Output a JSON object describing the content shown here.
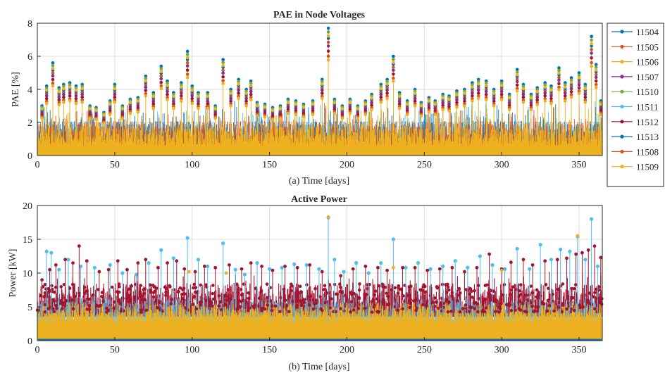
{
  "chart_data": [
    {
      "type": "line",
      "title": "PAE in Node Voltages",
      "xlabel": "(a) Time [days]",
      "ylabel": "PAE [%]",
      "xlim": [
        0,
        365
      ],
      "ylim": [
        0,
        8
      ],
      "xticks": [
        0,
        50,
        100,
        150,
        200,
        250,
        300,
        350
      ],
      "yticks": [
        0,
        2,
        4,
        6,
        8
      ],
      "grid": true,
      "legend_position": "outside-right",
      "series": [
        {
          "name": "11504",
          "color": "#0072BD"
        },
        {
          "name": "11505",
          "color": "#D95319"
        },
        {
          "name": "11506",
          "color": "#EDB120"
        },
        {
          "name": "11507",
          "color": "#7E2F8E"
        },
        {
          "name": "11510",
          "color": "#77AC30"
        },
        {
          "name": "11511",
          "color": "#4DBEEE"
        },
        {
          "name": "11512",
          "color": "#A2142F"
        },
        {
          "name": "11513",
          "color": "#0072BD"
        },
        {
          "name": "11508",
          "color": "#D95319"
        },
        {
          "name": "11509",
          "color": "#EDB120"
        }
      ],
      "baseline_band": [
        0,
        1.5
      ],
      "peaks": [
        [
          3,
          3.0
        ],
        [
          6,
          4.2
        ],
        [
          10,
          5.6
        ],
        [
          14,
          4.1
        ],
        [
          17,
          4.3
        ],
        [
          21,
          4.4
        ],
        [
          25,
          4.2
        ],
        [
          29,
          4.3
        ],
        [
          34,
          3.0
        ],
        [
          38,
          2.9
        ],
        [
          43,
          2.6
        ],
        [
          47,
          3.3
        ],
        [
          50,
          4.3
        ],
        [
          55,
          3.0
        ],
        [
          60,
          3.4
        ],
        [
          65,
          3.5
        ],
        [
          70,
          4.8
        ],
        [
          75,
          3.8
        ],
        [
          80,
          5.4
        ],
        [
          84,
          4.5
        ],
        [
          88,
          3.8
        ],
        [
          93,
          4.4
        ],
        [
          97,
          6.3
        ],
        [
          100,
          4.2
        ],
        [
          104,
          3.8
        ],
        [
          110,
          3.8
        ],
        [
          115,
          3.0
        ],
        [
          120,
          5.8
        ],
        [
          125,
          4.0
        ],
        [
          130,
          4.6
        ],
        [
          135,
          4.0
        ],
        [
          138,
          4.5
        ],
        [
          142,
          3.2
        ],
        [
          147,
          3.1
        ],
        [
          152,
          2.9
        ],
        [
          157,
          3.0
        ],
        [
          162,
          3.4
        ],
        [
          167,
          3.3
        ],
        [
          172,
          3.1
        ],
        [
          178,
          3.3
        ],
        [
          184,
          4.6
        ],
        [
          188,
          7.7
        ],
        [
          192,
          3.4
        ],
        [
          197,
          3.0
        ],
        [
          202,
          3.4
        ],
        [
          207,
          3.0
        ],
        [
          212,
          3.3
        ],
        [
          216,
          3.7
        ],
        [
          222,
          4.3
        ],
        [
          226,
          4.6
        ],
        [
          230,
          6.0
        ],
        [
          234,
          3.8
        ],
        [
          239,
          3.3
        ],
        [
          244,
          4.0
        ],
        [
          248,
          3.2
        ],
        [
          253,
          3.5
        ],
        [
          257,
          3.3
        ],
        [
          262,
          3.7
        ],
        [
          266,
          3.6
        ],
        [
          271,
          3.9
        ],
        [
          276,
          4.0
        ],
        [
          281,
          4.4
        ],
        [
          285,
          4.6
        ],
        [
          290,
          4.5
        ],
        [
          295,
          4.0
        ],
        [
          300,
          4.5
        ],
        [
          305,
          3.7
        ],
        [
          310,
          5.2
        ],
        [
          314,
          4.3
        ],
        [
          319,
          3.7
        ],
        [
          323,
          4.1
        ],
        [
          328,
          4.4
        ],
        [
          332,
          4.2
        ],
        [
          337,
          5.3
        ],
        [
          341,
          4.4
        ],
        [
          345,
          4.7
        ],
        [
          350,
          5.0
        ],
        [
          354,
          4.3
        ],
        [
          358,
          7.2
        ],
        [
          361,
          5.5
        ],
        [
          364,
          3.3
        ]
      ]
    },
    {
      "type": "line",
      "title": "Active Power",
      "xlabel": "(b) Time [days]",
      "ylabel": "Power [kW]",
      "xlim": [
        0,
        365
      ],
      "ylim": [
        0,
        20
      ],
      "xticks": [
        0,
        50,
        100,
        150,
        200,
        250,
        300,
        350
      ],
      "yticks": [
        0,
        5,
        10,
        15,
        20
      ],
      "grid": true,
      "series": [
        {
          "name": "11504",
          "color": "#0072BD"
        },
        {
          "name": "11505",
          "color": "#D95319"
        },
        {
          "name": "11506",
          "color": "#EDB120"
        },
        {
          "name": "11507",
          "color": "#7E2F8E"
        },
        {
          "name": "11510",
          "color": "#77AC30"
        },
        {
          "name": "11511",
          "color": "#4DBEEE"
        },
        {
          "name": "11512",
          "color": "#A2142F"
        },
        {
          "name": "11513",
          "color": "#0072BD"
        },
        {
          "name": "11508",
          "color": "#D95319"
        },
        {
          "name": "11509",
          "color": "#EDB120"
        }
      ],
      "baseline_band": [
        0,
        4.5
      ],
      "peaks_light": [
        [
          6,
          13.2
        ],
        [
          9,
          13.0
        ],
        [
          14,
          10.5
        ],
        [
          20,
          12.0
        ],
        [
          28,
          11.0
        ],
        [
          37,
          10.8
        ],
        [
          47,
          11.2
        ],
        [
          55,
          10.0
        ],
        [
          64,
          9.8
        ],
        [
          72,
          11.5
        ],
        [
          80,
          13.4
        ],
        [
          88,
          12.2
        ],
        [
          97,
          15.2
        ],
        [
          104,
          12.0
        ],
        [
          110,
          11.0
        ],
        [
          120,
          14.4
        ],
        [
          128,
          10.5
        ],
        [
          134,
          9.8
        ],
        [
          142,
          11.5
        ],
        [
          150,
          10.6
        ],
        [
          158,
          10.8
        ],
        [
          166,
          11.3
        ],
        [
          174,
          11.2
        ],
        [
          182,
          10.6
        ],
        [
          188,
          18.2
        ],
        [
          192,
          12.0
        ],
        [
          198,
          10.2
        ],
        [
          206,
          11.5
        ],
        [
          214,
          10.0
        ],
        [
          222,
          11.5
        ],
        [
          230,
          15.0
        ],
        [
          238,
          10.8
        ],
        [
          246,
          11.5
        ],
        [
          254,
          10.6
        ],
        [
          262,
          11.0
        ],
        [
          270,
          11.8
        ],
        [
          278,
          10.8
        ],
        [
          286,
          12.5
        ],
        [
          294,
          11.2
        ],
        [
          302,
          10.6
        ],
        [
          310,
          13.6
        ],
        [
          318,
          10.6
        ],
        [
          325,
          14.2
        ],
        [
          332,
          12.0
        ],
        [
          338,
          13.5
        ],
        [
          344,
          13.2
        ],
        [
          349,
          15.4
        ],
        [
          354,
          12.0
        ],
        [
          358,
          18.0
        ],
        [
          362,
          11.0
        ]
      ],
      "peaks_dark": [
        [
          3,
          9.0
        ],
        [
          8,
          10.5
        ],
        [
          12,
          11.2
        ],
        [
          18,
          12.0
        ],
        [
          23,
          11.5
        ],
        [
          27,
          14.0
        ],
        [
          32,
          11.8
        ],
        [
          40,
          10.2
        ],
        [
          46,
          10.5
        ],
        [
          52,
          11.8
        ],
        [
          58,
          10.5
        ],
        [
          65,
          11.5
        ],
        [
          70,
          12.0
        ],
        [
          78,
          10.8
        ],
        [
          84,
          11.5
        ],
        [
          90,
          11.8
        ],
        [
          95,
          10.6
        ],
        [
          102,
          10.2
        ],
        [
          108,
          11.0
        ],
        [
          115,
          10.8
        ],
        [
          124,
          11.2
        ],
        [
          132,
          10.6
        ],
        [
          138,
          11.5
        ],
        [
          145,
          11.0
        ],
        [
          152,
          10.4
        ],
        [
          160,
          11.0
        ],
        [
          168,
          10.8
        ],
        [
          176,
          11.2
        ],
        [
          184,
          10.2
        ],
        [
          196,
          9.6
        ],
        [
          204,
          10.6
        ],
        [
          212,
          11.0
        ],
        [
          220,
          10.8
        ],
        [
          226,
          10.4
        ],
        [
          236,
          10.8
        ],
        [
          244,
          10.8
        ],
        [
          252,
          10.4
        ],
        [
          260,
          10.6
        ],
        [
          268,
          10.8
        ],
        [
          276,
          10.2
        ],
        [
          284,
          10.8
        ],
        [
          292,
          12.8
        ],
        [
          300,
          10.6
        ],
        [
          306,
          11.6
        ],
        [
          314,
          12.0
        ],
        [
          320,
          11.2
        ],
        [
          328,
          11.8
        ],
        [
          336,
          12.0
        ],
        [
          342,
          12.2
        ],
        [
          348,
          12.8
        ],
        [
          352,
          13.0
        ],
        [
          356,
          13.4
        ],
        [
          360,
          14.0
        ],
        [
          364,
          12.3
        ]
      ]
    }
  ]
}
